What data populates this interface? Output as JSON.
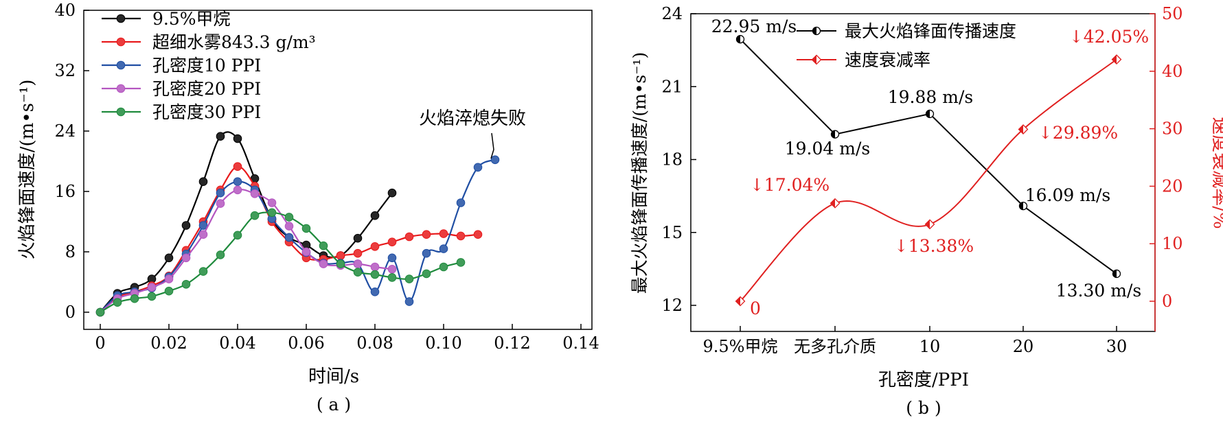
{
  "chart_data": [
    {
      "type": "line",
      "panel_label": "( a )",
      "xlabel": "时间/s",
      "ylabel": "火焰锋面速度/(m•s⁻¹)",
      "xlim": [
        -0.005,
        0.14
      ],
      "ylim": [
        -2,
        40
      ],
      "xticks": [
        0,
        0.02,
        0.04,
        0.06,
        0.08,
        0.1,
        0.12,
        0.14
      ],
      "xtick_labels": [
        "0",
        "0.02",
        "0.04",
        "0.06",
        "0.08",
        "0.10",
        "0.12",
        "0.14"
      ],
      "yticks": [
        0,
        8,
        16,
        24,
        32,
        40
      ],
      "ytick_labels": [
        "0",
        "8",
        "16",
        "24",
        "32",
        "40"
      ],
      "legend_position": "top-left",
      "annotation": "火焰淬熄失败",
      "series": [
        {
          "name": "9.5%甲烷",
          "color": "#000000",
          "x": [
            0,
            0.005,
            0.01,
            0.015,
            0.02,
            0.025,
            0.03,
            0.035,
            0.04,
            0.045,
            0.05,
            0.055,
            0.06,
            0.065,
            0.07,
            0.075,
            0.08,
            0.085
          ],
          "y": [
            0,
            2.5,
            3.3,
            4.4,
            7.2,
            11.5,
            17.3,
            23.3,
            23.0,
            17.7,
            12.3,
            9.9,
            8.9,
            7.5,
            7.5,
            9.8,
            12.8,
            15.8
          ]
        },
        {
          "name": "超细水雾843.3 g/m³",
          "color": "#e8191b",
          "x": [
            0,
            0.005,
            0.01,
            0.015,
            0.02,
            0.025,
            0.03,
            0.035,
            0.04,
            0.045,
            0.05,
            0.055,
            0.06,
            0.065,
            0.07,
            0.075,
            0.08,
            0.085,
            0.09,
            0.095,
            0.1,
            0.105,
            0.11
          ],
          "y": [
            0,
            2.0,
            2.7,
            3.5,
            4.8,
            8.2,
            12.0,
            16.2,
            19.3,
            16.7,
            12.0,
            9.3,
            7.2,
            7.0,
            7.5,
            7.8,
            8.7,
            9.3,
            10.0,
            10.3,
            10.4,
            10.1,
            10.3
          ]
        },
        {
          "name": "孔密度10 PPI",
          "color": "#1f4ea3",
          "x": [
            0,
            0.005,
            0.01,
            0.015,
            0.02,
            0.025,
            0.03,
            0.035,
            0.04,
            0.045,
            0.05,
            0.055,
            0.06,
            0.065,
            0.07,
            0.075,
            0.08,
            0.085,
            0.09,
            0.095,
            0.1,
            0.105,
            0.11,
            0.115
          ],
          "y": [
            0,
            2.2,
            2.7,
            3.2,
            4.7,
            7.7,
            11.5,
            15.8,
            17.3,
            16.2,
            12.4,
            9.9,
            7.9,
            6.5,
            6.5,
            6.4,
            2.7,
            7.2,
            1.4,
            7.8,
            8.4,
            14.5,
            19.2,
            20.2
          ]
        },
        {
          "name": "孔密度20 PPI",
          "color": "#b455c0",
          "x": [
            0,
            0.005,
            0.01,
            0.015,
            0.02,
            0.025,
            0.03,
            0.035,
            0.04,
            0.045,
            0.05,
            0.055,
            0.06,
            0.065,
            0.07,
            0.075,
            0.08,
            0.085
          ],
          "y": [
            0,
            1.8,
            2.5,
            3.3,
            4.4,
            7.2,
            10.3,
            14.4,
            16.2,
            15.7,
            14.5,
            11.4,
            8.0,
            6.4,
            6.2,
            6.4,
            6.0,
            5.7
          ]
        },
        {
          "name": "孔密度30 PPI",
          "color": "#1e8a3c",
          "x": [
            0,
            0.005,
            0.01,
            0.015,
            0.02,
            0.025,
            0.03,
            0.035,
            0.04,
            0.045,
            0.05,
            0.055,
            0.06,
            0.065,
            0.07,
            0.075,
            0.08,
            0.085,
            0.09,
            0.095,
            0.1,
            0.105
          ],
          "y": [
            0,
            1.3,
            1.8,
            2.1,
            2.8,
            3.7,
            5.4,
            7.6,
            10.2,
            12.8,
            13.2,
            12.6,
            11.1,
            8.8,
            6.4,
            5.3,
            5.0,
            4.6,
            4.4,
            5.1,
            6.0,
            6.6
          ]
        }
      ]
    },
    {
      "type": "line",
      "panel_label": "( b )",
      "xlabel": "孔密度/PPI",
      "ylabel": "最大火焰锋面传播速度/(m•s⁻¹)",
      "y2label": "速度衰减率/%",
      "categories": [
        "9.5%甲烷",
        "无多孔介质",
        "10",
        "20",
        "30"
      ],
      "ylim": [
        11,
        24
      ],
      "yticks": [
        12,
        15,
        18,
        21,
        24
      ],
      "ytick_labels": [
        "12",
        "15",
        "18",
        "21",
        "24"
      ],
      "y2lim": [
        -5,
        50
      ],
      "y2ticks": [
        0,
        10,
        20,
        30,
        40,
        50
      ],
      "y2tick_labels": [
        "0",
        "10",
        "20",
        "30",
        "40",
        "50"
      ],
      "legend_position": "top-center",
      "series": [
        {
          "name": "最大火焰锋面传播速度",
          "axis": "left",
          "color": "#000000",
          "values": [
            22.95,
            19.04,
            19.88,
            16.09,
            13.3
          ],
          "labels": [
            "22.95 m/s",
            "19.04 m/s",
            "19.88 m/s",
            "16.09 m/s",
            "13.30 m/s"
          ]
        },
        {
          "name": "速度衰减率",
          "axis": "right",
          "color": "#e02020",
          "values": [
            0,
            17.04,
            13.38,
            29.89,
            42.05
          ],
          "labels": [
            "0",
            "↓17.04%",
            "↓13.38%",
            "↓29.89%",
            "↓42.05%"
          ]
        }
      ]
    }
  ]
}
